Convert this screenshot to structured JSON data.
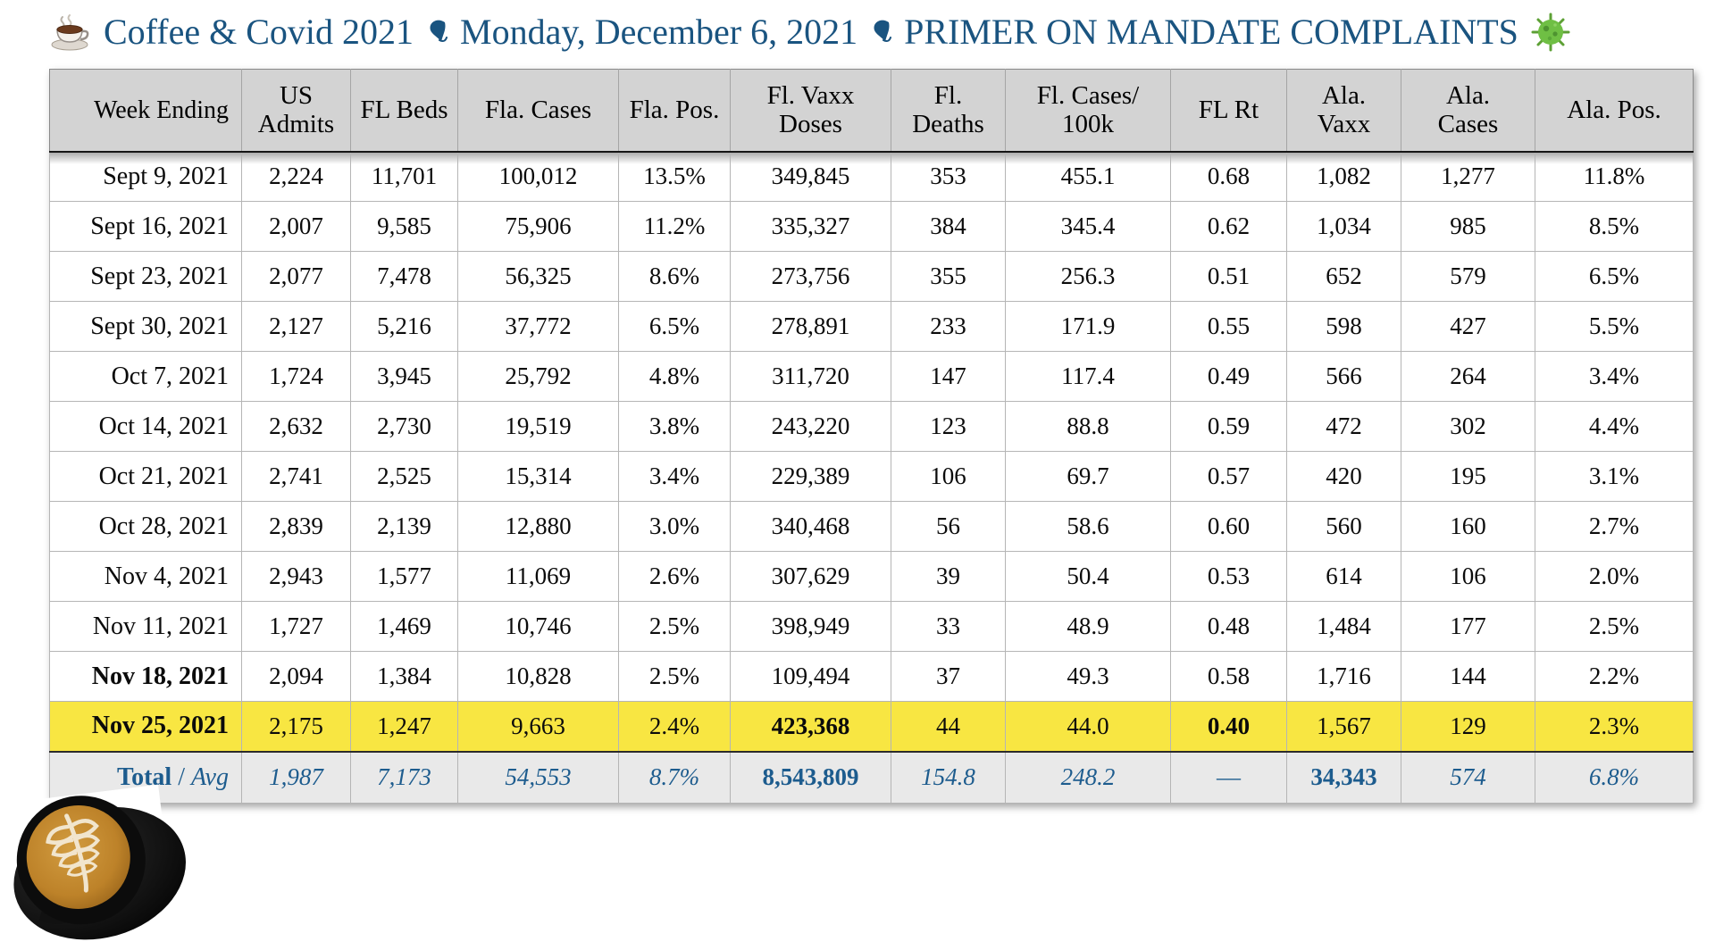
{
  "title": {
    "part1": "Coffee & Covid 2021",
    "part2": "Monday, December 6, 2021",
    "part3": "PRIMER ON MANDATE COMPLAINTS",
    "separator": "❧",
    "coffee_icon": "coffee-cup",
    "virus_icon": "virus"
  },
  "colors": {
    "title_blue": "#1a5480",
    "date_blue": "#2e9bf0",
    "total_blue": "#1d5c8e",
    "row_highlight": "#f8e642",
    "header_bg": "#d3d3d3",
    "total_bg": "#e9e9e9"
  },
  "chart_data": {
    "type": "table",
    "title": "Coffee & Covid 2021 ❧ Monday, December 6, 2021 ❧ PRIMER ON MANDATE COMPLAINTS",
    "columns": [
      "Week Ending",
      "US\nAdmits",
      "FL Beds",
      "Fla. Cases",
      "Fla. Pos.",
      "Fl. Vaxx\nDoses",
      "Fl.\nDeaths",
      "Fl. Cases/\n100k",
      "FL Rt",
      "Ala.\nVaxx",
      "Ala.\nCases",
      "Ala. Pos."
    ],
    "rows": [
      {
        "date": "Sept 9, 2021",
        "values": [
          "2,224",
          "11,701",
          "100,012",
          "13.5%",
          "349,845",
          "353",
          "455.1",
          "0.68",
          "1,082",
          "1,277",
          "11.8%"
        ]
      },
      {
        "date": "Sept 16, 2021",
        "values": [
          "2,007",
          "9,585",
          "75,906",
          "11.2%",
          "335,327",
          "384",
          "345.4",
          "0.62",
          "1,034",
          "985",
          "8.5%"
        ]
      },
      {
        "date": "Sept 23, 2021",
        "values": [
          "2,077",
          "7,478",
          "56,325",
          "8.6%",
          "273,756",
          "355",
          "256.3",
          "0.51",
          "652",
          "579",
          "6.5%"
        ]
      },
      {
        "date": "Sept 30, 2021",
        "values": [
          "2,127",
          "5,216",
          "37,772",
          "6.5%",
          "278,891",
          "233",
          "171.9",
          "0.55",
          "598",
          "427",
          "5.5%"
        ]
      },
      {
        "date": "Oct 7, 2021",
        "values": [
          "1,724",
          "3,945",
          "25,792",
          "4.8%",
          "311,720",
          "147",
          "117.4",
          "0.49",
          "566",
          "264",
          "3.4%"
        ]
      },
      {
        "date": "Oct 14, 2021",
        "values": [
          "2,632",
          "2,730",
          "19,519",
          "3.8%",
          "243,220",
          "123",
          "88.8",
          "0.59",
          "472",
          "302",
          "4.4%"
        ]
      },
      {
        "date": "Oct 21, 2021",
        "values": [
          "2,741",
          "2,525",
          "15,314",
          "3.4%",
          "229,389",
          "106",
          "69.7",
          "0.57",
          "420",
          "195",
          "3.1%"
        ]
      },
      {
        "date": "Oct 28, 2021",
        "values": [
          "2,839",
          "2,139",
          "12,880",
          "3.0%",
          "340,468",
          "56",
          "58.6",
          "0.60",
          "560",
          "160",
          "2.7%"
        ]
      },
      {
        "date": "Nov 4, 2021",
        "values": [
          "2,943",
          "1,577",
          "11,069",
          "2.6%",
          "307,629",
          "39",
          "50.4",
          "0.53",
          "614",
          "106",
          "2.0%"
        ]
      },
      {
        "date": "Nov 11, 2021",
        "values": [
          "1,727",
          "1,469",
          "10,746",
          "2.5%",
          "398,949",
          "33",
          "48.9",
          "0.48",
          "1,484",
          "177",
          "2.5%"
        ]
      },
      {
        "date": "Nov 18, 2021",
        "date_blue": true,
        "values": [
          "2,094",
          "1,384",
          "10,828",
          "2.5%",
          "109,494",
          "37",
          "49.3",
          "0.58",
          "1,716",
          "144",
          "2.2%"
        ]
      },
      {
        "date": "Nov 25, 2021",
        "date_blue": true,
        "highlight": true,
        "bold_cells": [
          4,
          7
        ],
        "values": [
          "2,175",
          "1,247",
          "9,663",
          "2.4%",
          "423,368",
          "44",
          "44.0",
          "0.40",
          "1,567",
          "129",
          "2.3%"
        ]
      }
    ],
    "total": {
      "label_bold": "Total",
      "label_sep": "/",
      "label_italic": "Avg",
      "values": [
        "1,987",
        "7,173",
        "54,553",
        "8.7%",
        "8,543,809",
        "154.8",
        "248.2",
        "—",
        "34,343",
        "574",
        "6.8%"
      ],
      "styles": [
        "i",
        "i",
        "i",
        "i",
        "b",
        "i",
        "i",
        "d",
        "b",
        "i",
        "i"
      ]
    }
  }
}
